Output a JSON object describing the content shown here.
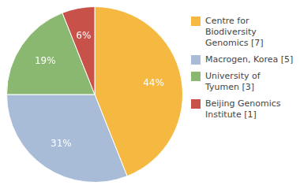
{
  "chart_data": {
    "type": "pie",
    "categories": [
      "Centre for Biodiversity\nGenomics [7]",
      "Macrogen, Korea [5]",
      "University of Tyumen [3]",
      "Beijing Genomics Institute [1]"
    ],
    "values": [
      44,
      31,
      19,
      6
    ],
    "value_labels": [
      "44%",
      "31%",
      "19%",
      "6%"
    ],
    "colors": [
      "#f5b942",
      "#a8bcd8",
      "#8ab870",
      "#c8524a"
    ],
    "data_labels": true,
    "legend": "right"
  }
}
